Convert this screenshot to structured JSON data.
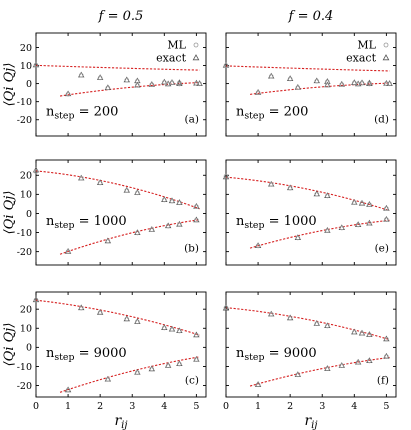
{
  "chart_data": {
    "type": "scatter",
    "columns": [
      {
        "title": "f = 0.5"
      },
      {
        "title": "f = 0.4"
      }
    ],
    "xlabel": "r_ij",
    "ylabel": "⟨Q_i Q_j⟩",
    "xlim": [
      0,
      5.3
    ],
    "x_ticks": [
      0,
      1,
      2,
      3,
      4,
      5
    ],
    "legend": {
      "entries": [
        "ML",
        "exact"
      ],
      "placement": "top-right",
      "panels": [
        "a",
        "d"
      ]
    },
    "series_names": [
      "ML",
      "exact"
    ],
    "panels": [
      {
        "id": "a",
        "tag": "(a)",
        "row": 0,
        "col": 0,
        "nstep_label": "n_step = 200",
        "ylim": [
          -29,
          28
        ],
        "y_ticks": [
          -20,
          -10,
          0,
          10,
          20
        ],
        "upper_branch": {
          "x": [
            0,
            1.41,
            2,
            2.83,
            3.16,
            4.0,
            4.24,
            4.47,
            5.0
          ],
          "exact": [
            10.2,
            4.6,
            3.2,
            1.9,
            1.4,
            0.7,
            0.5,
            0.4,
            0.1
          ]
        },
        "lower_branch": {
          "x": [
            1,
            2.24,
            3.16,
            3.61,
            4.12,
            4.47,
            5.1
          ],
          "exact": [
            -5.8,
            -2.4,
            -1.0,
            -0.6,
            -0.3,
            -0.2,
            -0.1
          ]
        },
        "fit_upper": [
          10.1,
          -0.62,
          0.02
        ],
        "fit_lower": [
          -9.0,
          3.0,
          -0.22
        ]
      },
      {
        "id": "d",
        "tag": "(d)",
        "row": 0,
        "col": 1,
        "nstep_label": "n_step = 200",
        "ylim": [
          -29,
          28
        ],
        "y_ticks": [
          -20,
          -10,
          0,
          10,
          20
        ],
        "upper_branch": {
          "x": [
            0,
            1.41,
            2,
            2.83,
            3.16,
            4.0,
            4.24,
            4.47,
            5.0
          ],
          "exact": [
            10.0,
            4.0,
            2.6,
            1.4,
            1.0,
            0.4,
            0.3,
            0.2,
            0.0
          ]
        },
        "lower_branch": {
          "x": [
            1,
            2.24,
            3.16,
            3.61,
            4.12,
            4.47,
            5.1
          ],
          "exact": [
            -5.0,
            -2.2,
            -0.9,
            -0.5,
            -0.3,
            -0.2,
            -0.1
          ]
        },
        "fit_upper": [
          9.8,
          -0.65,
          0.02
        ],
        "fit_lower": [
          -7.8,
          2.6,
          -0.2
        ]
      },
      {
        "id": "b",
        "tag": "(b)",
        "row": 1,
        "col": 0,
        "nstep_label": "n_step = 1000",
        "ylim": [
          -27,
          28
        ],
        "y_ticks": [
          -20,
          -10,
          0,
          10,
          20
        ],
        "upper_branch": {
          "x": [
            0,
            1.41,
            2,
            2.83,
            3.16,
            4.0,
            4.24,
            4.47,
            5.0
          ],
          "exact": [
            22.6,
            18.4,
            16.0,
            12.0,
            10.8,
            7.1,
            6.5,
            5.6,
            3.6
          ],
          "ml": [
            22.0
          ]
        },
        "lower_branch": {
          "x": [
            1,
            2.24,
            3.16,
            3.61,
            4.12,
            4.47,
            5.0
          ],
          "exact": [
            -20.0,
            -14.5,
            -10.2,
            -8.5,
            -6.6,
            -5.8,
            -3.5
          ]
        },
        "fit_upper": [
          22.3,
          -1.6,
          -0.45
        ],
        "fit_lower": [
          -26.0,
          6.5,
          -0.4
        ]
      },
      {
        "id": "e",
        "tag": "(e)",
        "row": 1,
        "col": 1,
        "nstep_label": "n_step = 1000",
        "ylim": [
          -27,
          28
        ],
        "y_ticks": [
          -20,
          -10,
          0,
          10,
          20
        ],
        "upper_branch": {
          "x": [
            0,
            1.41,
            2,
            2.83,
            3.16,
            4.0,
            4.24,
            4.47,
            5.0
          ],
          "exact": [
            19.0,
            15.2,
            13.3,
            10.1,
            9.2,
            5.7,
            5.2,
            4.6,
            2.6
          ],
          "ml": [
            19.5
          ]
        },
        "lower_branch": {
          "x": [
            1,
            2.24,
            3.16,
            3.61,
            4.12,
            4.47,
            5.0
          ],
          "exact": [
            -17.0,
            -12.8,
            -9.0,
            -7.6,
            -6.0,
            -5.2,
            -3.2
          ]
        },
        "fit_upper": [
          19.0,
          -1.5,
          -0.38
        ],
        "fit_lower": [
          -22.0,
          5.4,
          -0.35
        ]
      },
      {
        "id": "c",
        "tag": "(c)",
        "row": 2,
        "col": 0,
        "nstep_label": "n_step = 9000",
        "ylim": [
          -26,
          29
        ],
        "y_ticks": [
          -20,
          -10,
          0,
          10,
          20
        ],
        "upper_branch": {
          "x": [
            0,
            1.41,
            2,
            2.83,
            3.16,
            4.0,
            4.24,
            4.47,
            5.0
          ],
          "exact": [
            24.8,
            20.6,
            18.2,
            14.8,
            13.4,
            10.2,
            9.4,
            8.6,
            6.4
          ]
        },
        "lower_branch": {
          "x": [
            1,
            2.24,
            3.16,
            3.61,
            4.12,
            4.47,
            5.0
          ],
          "exact": [
            -22.4,
            -16.8,
            -13.2,
            -11.4,
            -9.6,
            -8.7,
            -6.4
          ]
        },
        "fit_upper": [
          24.7,
          -1.9,
          -0.33
        ],
        "fit_lower": [
          -28.0,
          6.2,
          -0.33
        ]
      },
      {
        "id": "f",
        "tag": "(f)",
        "row": 2,
        "col": 1,
        "nstep_label": "n_step = 9000",
        "ylim": [
          -26,
          29
        ],
        "y_ticks": [
          -20,
          -10,
          0,
          10,
          20
        ],
        "upper_branch": {
          "x": [
            0,
            1.41,
            2,
            2.83,
            3.16,
            4.0,
            4.24,
            4.47,
            5.0
          ],
          "exact": [
            20.4,
            17.3,
            15.3,
            12.4,
            11.2,
            7.9,
            7.3,
            6.6,
            4.3
          ],
          "ml": [
            20.8
          ]
        },
        "lower_branch": {
          "x": [
            1,
            2.24,
            3.16,
            3.61,
            4.12,
            4.47,
            5.0
          ],
          "exact": [
            -19.6,
            -14.4,
            -11.2,
            -9.6,
            -7.9,
            -7.1,
            -4.8
          ]
        },
        "fit_upper": [
          20.8,
          -1.6,
          -0.33
        ],
        "fit_lower": [
          -24.0,
          5.2,
          -0.3
        ]
      }
    ]
  }
}
